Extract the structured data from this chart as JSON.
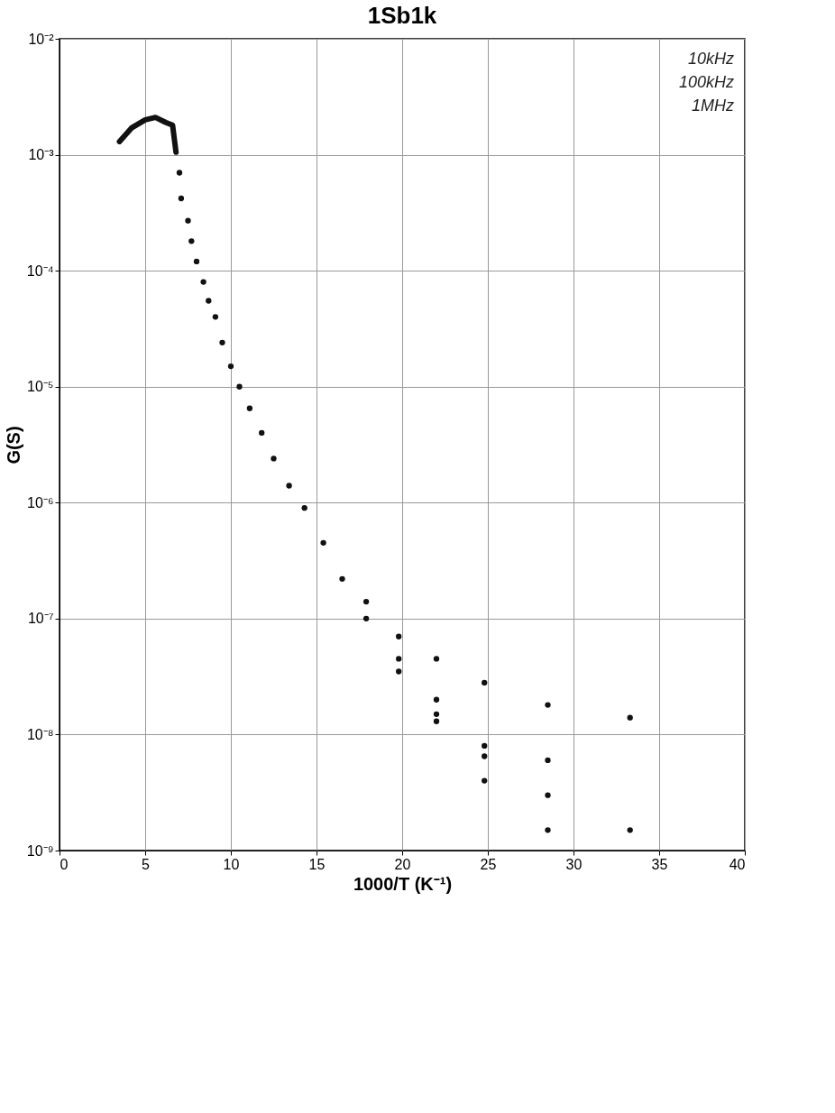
{
  "chart_data": {
    "type": "scatter",
    "title": "1Sb1k",
    "xlabel": "1000/T (K⁻¹)",
    "ylabel": "G(S)",
    "xlim": [
      0,
      40
    ],
    "xticks": [
      0,
      5,
      10,
      15,
      20,
      25,
      30,
      35,
      40
    ],
    "ylim": [
      1e-09,
      0.01
    ],
    "yticks": [
      {
        "value": 1e-09,
        "label": "10⁻⁹"
      },
      {
        "value": 1e-08,
        "label": "10⁻⁸"
      },
      {
        "value": 1e-07,
        "label": "10⁻⁷"
      },
      {
        "value": 1e-06,
        "label": "10⁻⁶"
      },
      {
        "value": 1e-05,
        "label": "10⁻⁵"
      },
      {
        "value": 0.0001,
        "label": "10⁻⁴"
      },
      {
        "value": 0.001,
        "label": "10⁻³"
      },
      {
        "value": 0.01,
        "label": "10⁻²"
      }
    ],
    "log": true,
    "grid": true,
    "marker": "circle",
    "annotations": [
      "10kHz",
      "100kHz",
      "1MHz"
    ],
    "series": [
      {
        "type": "line",
        "marker": "none",
        "color": "#111111",
        "x": [
          3.5,
          4.2,
          5.0,
          5.6,
          6.2,
          6.6,
          6.8
        ],
        "values": [
          0.0013,
          0.0017,
          0.002,
          0.0021,
          0.0019,
          0.0018,
          0.00105
        ]
      },
      {
        "color": "#111111",
        "x": [
          7.0,
          7.1,
          7.5,
          7.7,
          8.0,
          8.4,
          8.7,
          9.1,
          9.5,
          10.0,
          10.5,
          11.1,
          11.8,
          12.5,
          13.4,
          14.3,
          15.4,
          16.5,
          17.9,
          17.9,
          19.8,
          19.8,
          19.8,
          22.0,
          22.0,
          22.0,
          22.0,
          24.8,
          24.8,
          24.8,
          24.8,
          28.5,
          28.5,
          28.5,
          28.5,
          33.3,
          33.3
        ],
        "values": [
          0.0007,
          0.00042,
          0.00027,
          0.00018,
          0.00012,
          8e-05,
          5.5e-05,
          4e-05,
          2.4e-05,
          1.5e-05,
          1e-05,
          6.5e-06,
          4e-06,
          2.4e-06,
          1.4e-06,
          9e-07,
          4.5e-07,
          2.2e-07,
          1.4e-07,
          1e-07,
          7e-08,
          4.5e-08,
          3.5e-08,
          4.5e-08,
          2e-08,
          1.5e-08,
          1.3e-08,
          2.8e-08,
          8e-09,
          6.5e-09,
          4e-09,
          1.8e-08,
          6e-09,
          3e-09,
          1.5e-09,
          1.4e-08,
          1.5e-09
        ]
      }
    ]
  }
}
